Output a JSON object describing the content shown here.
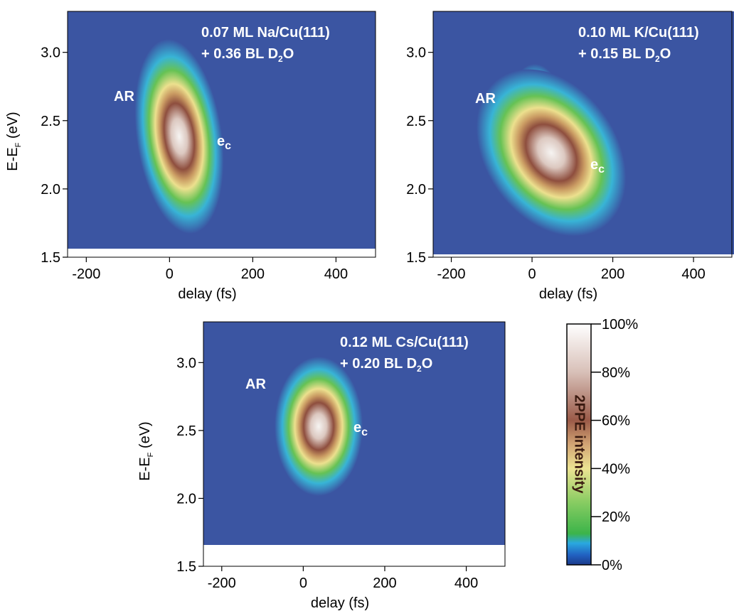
{
  "chart_data": [
    {
      "type": "heatmap",
      "xlim": [
        -245,
        495
      ],
      "ylim": [
        1.5,
        3.3
      ],
      "xticks": [
        -200,
        0,
        200,
        400
      ],
      "yticks": [
        1.5,
        {
          "value": 2,
          "label": "2.0"
        },
        2.5,
        {
          "value": 3,
          "label": "3.0"
        }
      ],
      "xlabel": "delay (fs)",
      "ylabel": {
        "text": "E-E",
        "sub": "F",
        "rest": " (eV)"
      },
      "annotations": [
        {
          "text": "0.07 ML Na/Cu(111)"
        },
        {
          "text": "+ 0.36 BL D",
          "sub": "2",
          "rest": "O"
        },
        {
          "text": "AR"
        },
        {
          "text": "e",
          "sub": "c"
        }
      ]
    },
    {
      "type": "heatmap",
      "xlim": [
        -245,
        495
      ],
      "ylim": [
        1.5,
        3.3
      ],
      "xticks": [
        -200,
        0,
        200,
        400
      ],
      "yticks": [
        1.5,
        {
          "value": 2,
          "label": "2.0"
        },
        2.5,
        {
          "value": 3,
          "label": "3.0"
        }
      ],
      "xlabel": "delay (fs)",
      "annotations": [
        {
          "text": "0.10 ML K/Cu(111)"
        },
        {
          "text": "+ 0.15 BL D",
          "sub": "2",
          "rest": "O"
        },
        {
          "text": "AR"
        },
        {
          "text": "e",
          "sub": "c"
        }
      ]
    },
    {
      "type": "heatmap",
      "xlim": [
        -245,
        495
      ],
      "ylim": [
        1.5,
        3.3
      ],
      "xticks": [
        -200,
        0,
        200,
        400
      ],
      "yticks": [
        1.5,
        {
          "value": 2,
          "label": "2.0"
        },
        2.5,
        {
          "value": 3,
          "label": "3.0"
        }
      ],
      "xlabel": "delay (fs)",
      "ylabel": {
        "text": "E-E",
        "sub": "F",
        "rest": " (eV)"
      },
      "annotations": [
        {
          "text": "0.12 ML Cs/Cu(111)"
        },
        {
          "text": "+ 0.20 BL D",
          "sub": "2",
          "rest": "O"
        },
        {
          "text": "AR"
        },
        {
          "text": "e",
          "sub": "c"
        }
      ]
    },
    {
      "type": "colorbar",
      "label": "2PPE intensity",
      "ylim": [
        0,
        100
      ],
      "yticks": [
        {
          "value": 0,
          "label": "0%"
        },
        {
          "value": 20,
          "label": "20%"
        },
        {
          "value": 40,
          "label": "40%"
        },
        {
          "value": 60,
          "label": "60%"
        },
        {
          "value": 80,
          "label": "80%"
        },
        {
          "value": 100,
          "label": "100%"
        }
      ]
    }
  ]
}
